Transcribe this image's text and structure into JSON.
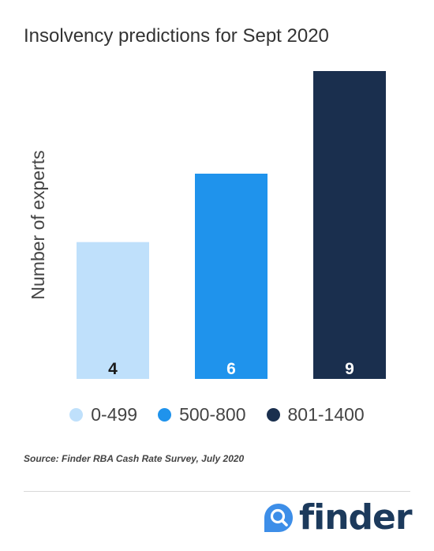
{
  "chart_data": {
    "type": "bar",
    "title": "Insolvency predictions for Sept 2020",
    "ylabel": "Number of experts",
    "xlabel": "",
    "categories": [
      "0-499",
      "500-800",
      "801-1400"
    ],
    "values": [
      4,
      6,
      9
    ],
    "colors": [
      "#bfe0fb",
      "#1f93ec",
      "#1a2f4e"
    ],
    "label_colors": [
      "#1a1a1a",
      "#ffffff",
      "#ffffff"
    ],
    "ylim": [
      0,
      9
    ],
    "grid": false,
    "legend_position": "bottom"
  },
  "legend": {
    "items": [
      {
        "label": "0-499",
        "color": "#bfe0fb"
      },
      {
        "label": "500-800",
        "color": "#1f93ec"
      },
      {
        "label": "801-1400",
        "color": "#1a2f4e"
      }
    ]
  },
  "source": "Source: Finder RBA Cash Rate Survey, July 2020",
  "logo": {
    "text": "finder",
    "icon": "search-magnifier-icon",
    "brand_color": "#1c3a5c",
    "icon_color": "#3d8ee8"
  }
}
